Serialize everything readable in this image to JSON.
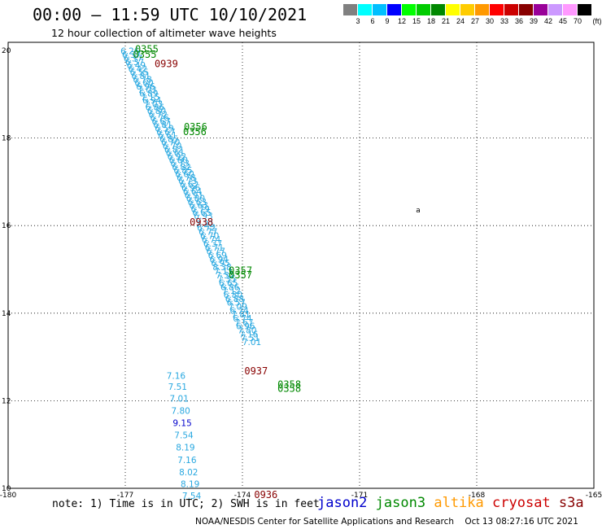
{
  "header": {
    "title": "00:00 – 11:59 UTC 10/10/2021",
    "subtitle": "12 hour collection of altimeter wave heights"
  },
  "legend": {
    "colors": [
      "#808080",
      "#00ffff",
      "#00bfff",
      "#0000ff",
      "#00ff00",
      "#00cc00",
      "#008800",
      "#ffff00",
      "#ffcc00",
      "#ff9900",
      "#ff0000",
      "#cc0000",
      "#880000",
      "#990099",
      "#cc99ff",
      "#ff99ff",
      "#000000"
    ],
    "labels": [
      "3",
      "6",
      "9",
      "12",
      "15",
      "18",
      "21",
      "24",
      "27",
      "30",
      "33",
      "36",
      "39",
      "42",
      "45",
      "70",
      "(ft)"
    ]
  },
  "axes": {
    "lon_ticks": [
      "-180",
      "-177",
      "-174",
      "-171",
      "-168",
      "-165"
    ],
    "lat_ticks": [
      "20",
      "18",
      "16",
      "14",
      "12",
      "10"
    ]
  },
  "track_color": "#29a8e0",
  "jason3_color": "#008800",
  "s3a_color": "#880000",
  "jason2_color": "#0000cc",
  "track_left": [
    {
      "label": "6.26",
      "lat": 19.92,
      "lon": -176.88
    },
    {
      "label": "6.37",
      "lat": 19.83,
      "lon": -176.84
    },
    {
      "label": "6.37",
      "lat": 19.75,
      "lon": -176.8
    },
    {
      "label": "6.37",
      "lat": 19.67,
      "lon": -176.76
    },
    {
      "label": "6.49",
      "lat": 19.59,
      "lon": -176.72
    },
    {
      "label": "6.42",
      "lat": 19.51,
      "lon": -176.68
    },
    {
      "label": "6.55",
      "lat": 19.43,
      "lon": -176.64
    },
    {
      "label": "6.81",
      "lat": 19.35,
      "lon": -176.6
    },
    {
      "label": "6.78",
      "lat": 19.27,
      "lon": -176.56
    },
    {
      "label": "6.60",
      "lat": 19.19,
      "lon": -176.52
    },
    {
      "label": "6.96",
      "lat": 19.11,
      "lon": -176.48
    },
    {
      "label": "7.03",
      "lat": 19.03,
      "lon": -176.44
    },
    {
      "label": "6.89",
      "lat": 18.95,
      "lon": -176.4
    },
    {
      "label": "7.15",
      "lat": 18.87,
      "lon": -176.36
    },
    {
      "label": "6.94",
      "lat": 18.79,
      "lon": -176.32
    },
    {
      "label": "7.03",
      "lat": 18.71,
      "lon": -176.28
    },
    {
      "label": "6.86",
      "lat": 18.63,
      "lon": -176.24
    },
    {
      "label": "6.80",
      "lat": 18.55,
      "lon": -176.2
    },
    {
      "label": "6.72",
      "lat": 18.47,
      "lon": -176.16
    },
    {
      "label": "6.76",
      "lat": 18.39,
      "lon": -176.12
    },
    {
      "label": "6.67",
      "lat": 18.31,
      "lon": -176.08
    },
    {
      "label": "6.81",
      "lat": 18.23,
      "lon": -176.04
    },
    {
      "label": "6.59",
      "lat": 18.15,
      "lon": -176.0
    },
    {
      "label": "6.67",
      "lat": 18.07,
      "lon": -175.96
    },
    {
      "label": "6.61",
      "lat": 17.99,
      "lon": -175.92
    },
    {
      "label": "6.85",
      "lat": 17.91,
      "lon": -175.88
    },
    {
      "label": "6.70",
      "lat": 17.83,
      "lon": -175.84
    },
    {
      "label": "6.70",
      "lat": 17.75,
      "lon": -175.8
    },
    {
      "label": "6.82",
      "lat": 17.67,
      "lon": -175.76
    },
    {
      "label": "6.61",
      "lat": 17.59,
      "lon": -175.72
    },
    {
      "label": "6.92",
      "lat": 17.51,
      "lon": -175.68
    },
    {
      "label": "6.60",
      "lat": 17.43,
      "lon": -175.64
    },
    {
      "label": "6.73",
      "lat": 17.35,
      "lon": -175.6
    },
    {
      "label": "6.82",
      "lat": 17.27,
      "lon": -175.56
    },
    {
      "label": "6.85",
      "lat": 17.19,
      "lon": -175.52
    },
    {
      "label": "6.60",
      "lat": 17.11,
      "lon": -175.48
    },
    {
      "label": "6.78",
      "lat": 17.03,
      "lon": -175.44
    },
    {
      "label": "6.73",
      "lat": 16.95,
      "lon": -175.4
    },
    {
      "label": "6.62",
      "lat": 16.87,
      "lon": -175.36
    },
    {
      "label": "6.96",
      "lat": 16.79,
      "lon": -175.32
    },
    {
      "label": "6.64",
      "lat": 16.71,
      "lon": -175.28
    },
    {
      "label": "6.91",
      "lat": 16.63,
      "lon": -175.24
    },
    {
      "label": "6.80",
      "lat": 16.55,
      "lon": -175.2
    },
    {
      "label": "6.63",
      "lat": 16.47,
      "lon": -175.16
    },
    {
      "label": "6.63",
      "lat": 16.39,
      "lon": -175.12
    },
    {
      "label": "6.79",
      "lat": 16.31,
      "lon": -175.08
    },
    {
      "label": "6.65",
      "lat": 16.23,
      "lon": -175.04
    },
    {
      "label": "6.93",
      "lat": 16.15,
      "lon": -175.0
    },
    {
      "label": "7.21",
      "lat": 15.97,
      "lon": -174.96
    },
    {
      "label": "6.72",
      "lat": 15.88,
      "lon": -174.92
    },
    {
      "label": "6.77",
      "lat": 15.79,
      "lon": -174.88
    },
    {
      "label": "6.70",
      "lat": 15.7,
      "lon": -174.84
    },
    {
      "label": "6.74",
      "lat": 15.61,
      "lon": -174.8
    },
    {
      "label": "6.37",
      "lat": 15.52,
      "lon": -174.76
    },
    {
      "label": "6.71",
      "lat": 15.43,
      "lon": -174.72
    },
    {
      "label": "6.77",
      "lat": 15.34,
      "lon": -174.68
    },
    {
      "label": "6.69",
      "lat": 15.25,
      "lon": -174.64
    },
    {
      "label": "6.94",
      "lat": 15.16,
      "lon": -174.6
    },
    {
      "label": "6.95",
      "lat": 15.07,
      "lon": -174.56
    },
    {
      "label": "8.38",
      "lat": 14.98,
      "lon": -174.52
    },
    {
      "label": "7.11",
      "lat": 14.89,
      "lon": -174.48
    },
    {
      "label": "7.32",
      "lat": 14.8,
      "lon": -174.44
    },
    {
      "label": "7.35",
      "lat": 14.71,
      "lon": -174.4
    },
    {
      "label": "6.65",
      "lat": 14.62,
      "lon": -174.36
    },
    {
      "label": "6.86",
      "lat": 14.53,
      "lon": -174.32
    },
    {
      "label": "7.12",
      "lat": 14.44,
      "lon": -174.28
    },
    {
      "label": "6.80",
      "lat": 14.35,
      "lon": -174.24
    },
    {
      "label": "6.88",
      "lat": 14.26,
      "lon": -174.2
    },
    {
      "label": "6.57",
      "lat": 14.17,
      "lon": -174.16
    },
    {
      "label": "7.09",
      "lat": 14.08,
      "lon": -174.12
    },
    {
      "label": "6.74",
      "lat": 13.99,
      "lon": -174.08
    },
    {
      "label": "7.81",
      "lat": 13.9,
      "lon": -174.04
    },
    {
      "label": "6.74",
      "lat": 13.81,
      "lon": -174.0
    },
    {
      "label": "7.67",
      "lat": 13.72,
      "lon": -173.96
    },
    {
      "label": "6.96",
      "lat": 13.63,
      "lon": -173.92
    },
    {
      "label": "7.80",
      "lat": 13.54,
      "lon": -173.88
    },
    {
      "label": "7.16",
      "lat": 13.45,
      "lon": -173.84
    },
    {
      "label": "7.51",
      "lat": 13.36,
      "lon": -173.8
    },
    {
      "label": "7.01",
      "lat": 13.27,
      "lon": -173.76
    }
  ],
  "track_right": [
    {
      "label": "7.16",
      "lat": 12.5,
      "lon": -175.7
    },
    {
      "label": "7.51",
      "lat": 12.25,
      "lon": -175.66
    },
    {
      "label": "7.01",
      "lat": 11.98,
      "lon": -175.62
    },
    {
      "label": "7.80",
      "lat": 11.7,
      "lon": -175.58
    },
    {
      "label": "9.15",
      "lat": 11.42,
      "lon": -175.54,
      "color": "jason2"
    },
    {
      "label": "7.54",
      "lat": 11.14,
      "lon": -175.5
    },
    {
      "label": "8.19",
      "lat": 10.86,
      "lon": -175.46
    },
    {
      "label": "7.16",
      "lat": 10.58,
      "lon": -175.42
    },
    {
      "label": "8.02",
      "lat": 10.3,
      "lon": -175.38
    },
    {
      "label": "8.19",
      "lat": 10.03,
      "lon": -175.34
    },
    {
      "label": "7.54",
      "lat": 9.76,
      "lon": -175.3
    }
  ],
  "time_labels": [
    {
      "label": "0355",
      "lat": 19.95,
      "lon": -176.45,
      "sat": "jason3"
    },
    {
      "label": "0355",
      "lat": 19.83,
      "lon": -176.5,
      "sat": "jason3"
    },
    {
      "label": "0939",
      "lat": 19.62,
      "lon": -175.95,
      "sat": "s3a"
    },
    {
      "label": "0356",
      "lat": 18.18,
      "lon": -175.2,
      "sat": "jason3"
    },
    {
      "label": "0356",
      "lat": 18.07,
      "lon": -175.22,
      "sat": "jason3"
    },
    {
      "label": "0938",
      "lat": 16.0,
      "lon": -175.05,
      "sat": "s3a"
    },
    {
      "label": "0357",
      "lat": 14.9,
      "lon": -174.05,
      "sat": "jason3"
    },
    {
      "label": "0357",
      "lat": 14.8,
      "lon": -174.05,
      "sat": "jason3"
    },
    {
      "label": "0937",
      "lat": 12.6,
      "lon": -173.65,
      "sat": "s3a"
    },
    {
      "label": "0358",
      "lat": 12.3,
      "lon": -172.8,
      "sat": "jason3"
    },
    {
      "label": "0358",
      "lat": 12.2,
      "lon": -172.8,
      "sat": "jason3"
    },
    {
      "label": "0936",
      "lat": 9.78,
      "lon": -173.4,
      "sat": "s3a"
    }
  ],
  "island_symbol": {
    "lat": 16.3,
    "lon": -169.5,
    "label": "a"
  },
  "footer": {
    "note": "note: 1) Time is in UTC; 2) SWH is in feet",
    "sat_jason2": "jason2",
    "sat_jason3": "jason3",
    "sat_altika": "altika",
    "sat_cryosat": "cryosat",
    "sat_s3a": "s3a",
    "jason2_color": "#0000cc",
    "jason3_color": "#008800",
    "altika_color": "#ff9900",
    "cryosat_color": "#cc0000",
    "s3a_color": "#880000",
    "credit": "NOAA/NESDIS Center for Satellite Applications and Research    Oct 13 08:27:16 UTC 2021"
  }
}
